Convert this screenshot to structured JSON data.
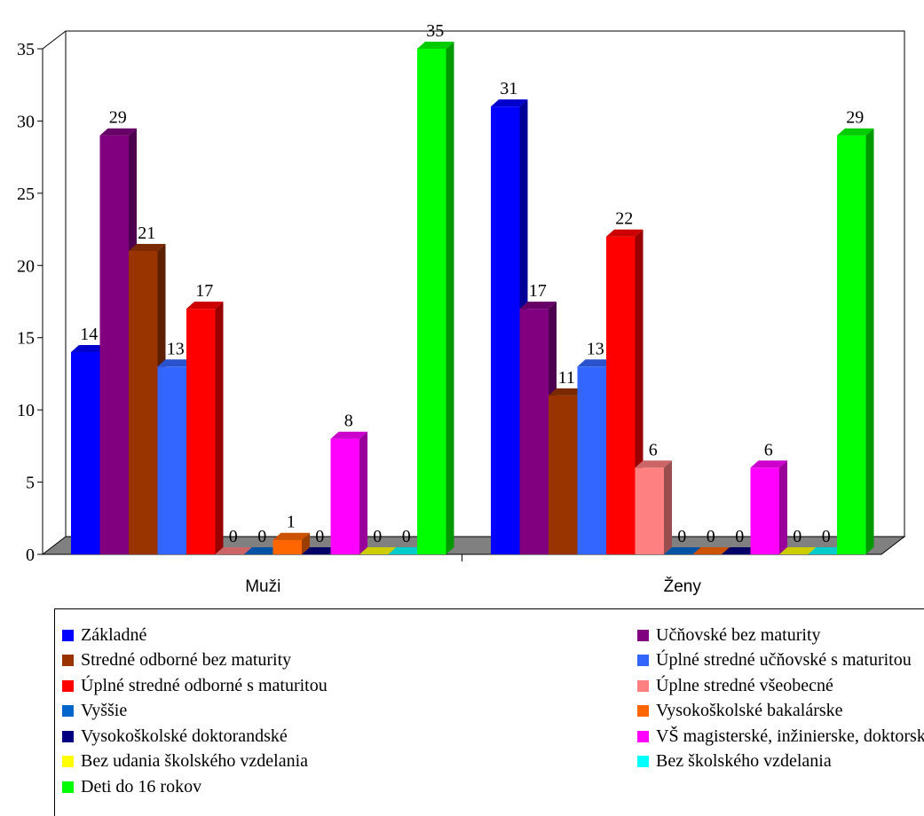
{
  "chart_data": {
    "type": "bar",
    "categories": [
      "Muži",
      "Ženy"
    ],
    "ylim": [
      0,
      35
    ],
    "yticks": [
      "0",
      "5",
      "10",
      "15",
      "20",
      "25",
      "30",
      "35"
    ],
    "grid": false,
    "legend_placement": "bottom",
    "series": [
      {
        "name": "Základné",
        "values": [
          14,
          31
        ],
        "color": "#0000FF"
      },
      {
        "name": "Učňovské bez maturity",
        "values": [
          29,
          17
        ],
        "color": "#800080"
      },
      {
        "name": "Stredné odborné bez maturity",
        "values": [
          21,
          11
        ],
        "color": "#993300"
      },
      {
        "name": "Úplné stredné učňovské s maturitou",
        "values": [
          13,
          13
        ],
        "color": "#3366FF"
      },
      {
        "name": "Úplné stredné odborné s maturitou",
        "values": [
          17,
          22
        ],
        "color": "#FF0000"
      },
      {
        "name": "Úplne stredné všeobecné",
        "values": [
          0,
          6
        ],
        "color": "#FF8080"
      },
      {
        "name": "Vyššie",
        "values": [
          0,
          0
        ],
        "color": "#0066CC"
      },
      {
        "name": "Vysokoškolské bakalárske",
        "values": [
          1,
          0
        ],
        "color": "#FF6600"
      },
      {
        "name": "Vysokoškolské doktorandské",
        "values": [
          0,
          0
        ],
        "color": "#000080"
      },
      {
        "name": "VŠ magisterské, inžinierske, doktorské",
        "values": [
          8,
          6
        ],
        "color": "#FF00FF"
      },
      {
        "name": "Bez udania školského vzdelania",
        "values": [
          0,
          0
        ],
        "color": "#FFFF00"
      },
      {
        "name": "Bez školského vzdelania",
        "values": [
          0,
          0
        ],
        "color": "#00FFFF"
      },
      {
        "name": "Deti do 16 rokov",
        "values": [
          35,
          29
        ],
        "color": "#00FF00"
      }
    ]
  }
}
